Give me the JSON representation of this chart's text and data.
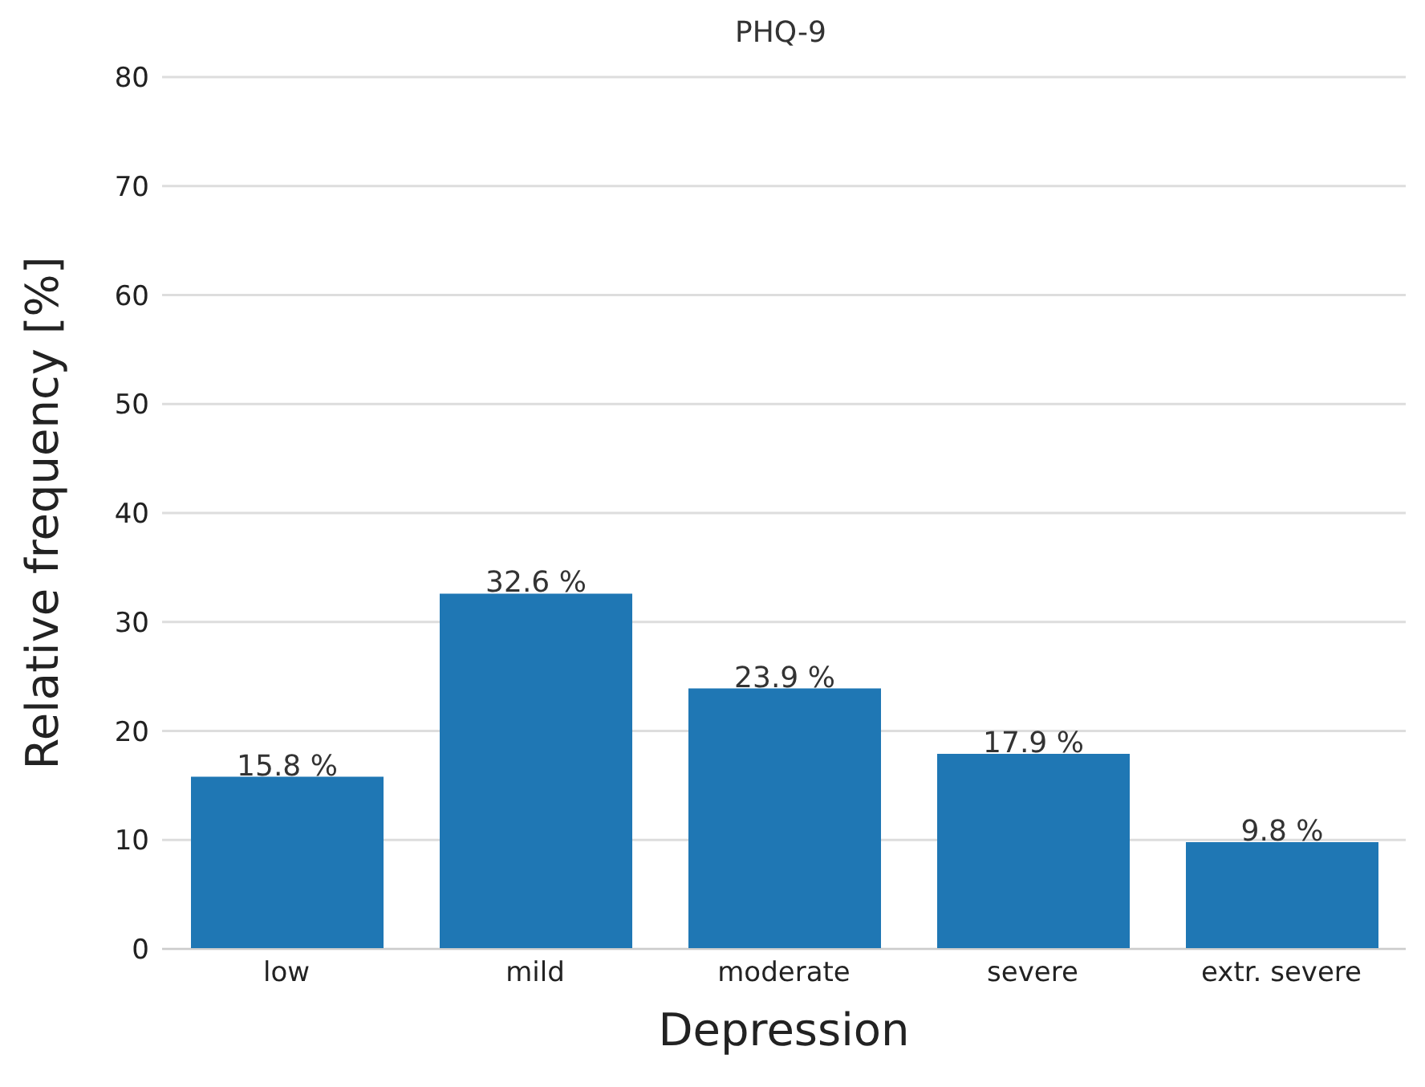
{
  "chart_data": {
    "type": "bar",
    "title": "PHQ-9",
    "xlabel": "Depression",
    "ylabel": "Relative frequency [%]",
    "categories": [
      "low",
      "mild",
      "moderate",
      "severe",
      "extr. severe"
    ],
    "values": [
      15.8,
      32.6,
      23.9,
      17.9,
      9.8
    ],
    "value_labels": [
      "15.8 %",
      "32.6 %",
      "23.9 %",
      "17.9 %",
      "9.8 %"
    ],
    "color": "#1f77b4",
    "ylim": [
      0,
      80
    ],
    "yticks": [
      0,
      10,
      20,
      30,
      40,
      50,
      60,
      70,
      80
    ],
    "grid": "y"
  }
}
